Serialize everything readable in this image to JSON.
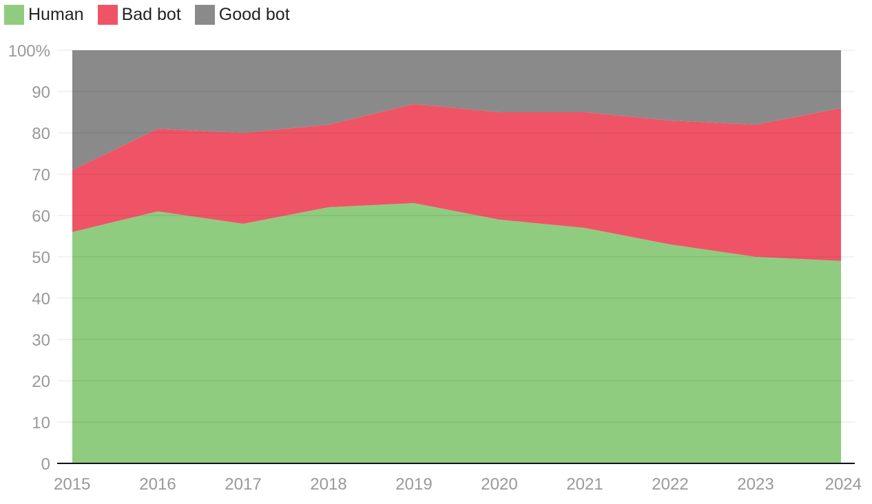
{
  "chart_data": {
    "type": "area",
    "stacked": true,
    "x": [
      "2015",
      "2016",
      "2017",
      "2018",
      "2019",
      "2020",
      "2021",
      "2022",
      "2023",
      "2024"
    ],
    "series": [
      {
        "name": "Human",
        "color": "#8fcc80",
        "values": [
          56,
          61,
          58,
          62,
          63,
          59,
          57,
          53,
          50,
          49
        ]
      },
      {
        "name": "Bad bot",
        "color": "#ef5466",
        "values": [
          15,
          20,
          22,
          20,
          24,
          26,
          28,
          30,
          32,
          37
        ]
      },
      {
        "name": "Good bot",
        "color": "#8a8a8a",
        "values": [
          29,
          19,
          20,
          18,
          13,
          15,
          15,
          17,
          18,
          14
        ]
      }
    ],
    "y_ticks": [
      "0",
      "10",
      "20",
      "30",
      "40",
      "50",
      "60",
      "70",
      "80",
      "90",
      "100%"
    ],
    "ylim": [
      0,
      100
    ],
    "legend": "top-left",
    "grid": true,
    "title": "",
    "xlabel": "",
    "ylabel": ""
  }
}
